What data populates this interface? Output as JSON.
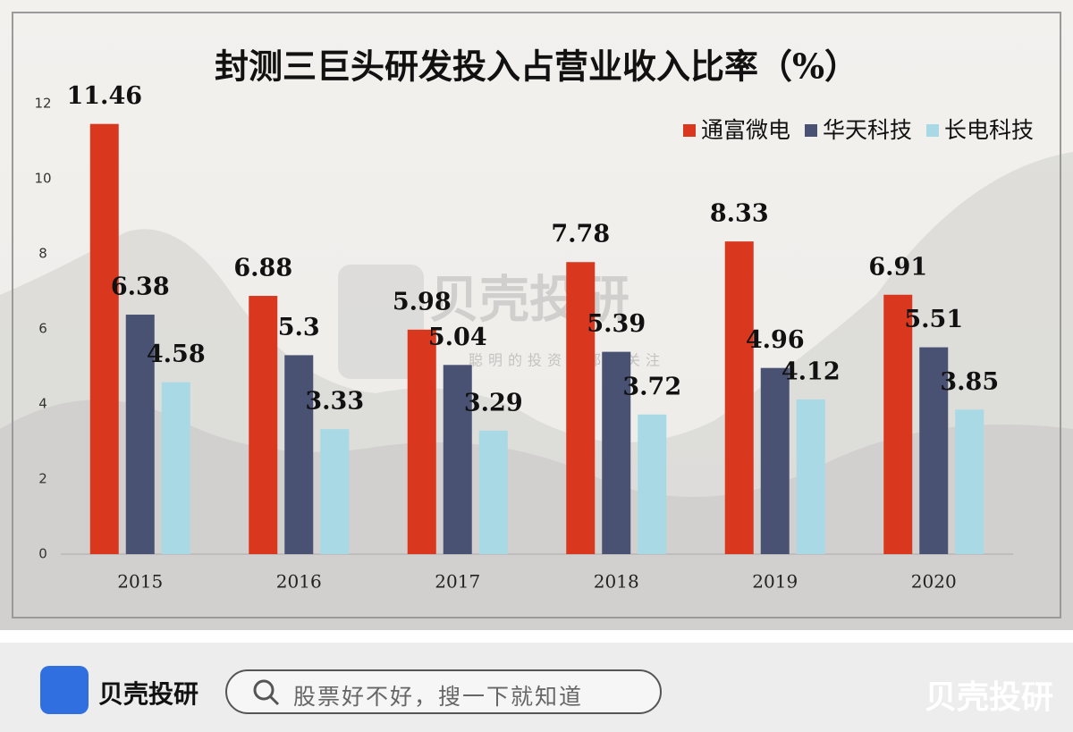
{
  "chart_data": {
    "type": "bar",
    "title": "封测三巨头研发投入占营业收入比率（%）",
    "categories": [
      "2015",
      "2016",
      "2017",
      "2018",
      "2019",
      "2020"
    ],
    "series": [
      {
        "name": "通富微电",
        "color": "#d9381e",
        "values": [
          11.46,
          6.88,
          5.98,
          7.78,
          8.33,
          6.91
        ]
      },
      {
        "name": "华天科技",
        "color": "#4a5274",
        "values": [
          6.38,
          5.3,
          5.04,
          5.39,
          4.96,
          5.51
        ]
      },
      {
        "name": "长电科技",
        "color": "#a9d9e4",
        "values": [
          4.58,
          3.33,
          3.29,
          3.72,
          4.12,
          3.85
        ]
      }
    ],
    "ylim": [
      0,
      12
    ],
    "yticks": [
      0,
      2,
      4,
      6,
      8,
      10,
      12
    ],
    "grid": false,
    "legend": "top-right"
  },
  "watermark": {
    "name": "贝壳投研",
    "slogan": "聪明的投资者都在关注"
  },
  "footer": {
    "brand": "贝壳投研",
    "search_placeholder": "股票好不好，搜一下就知道",
    "corner_mark": "贝壳投研"
  }
}
